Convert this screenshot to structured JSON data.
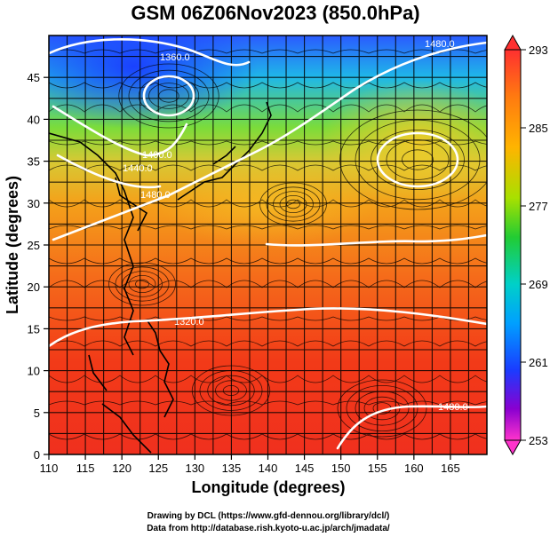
{
  "title": "GSM 06Z06Nov2023 (850.0hPa)",
  "x_axis": {
    "label": "Longitude (degrees)",
    "ticks": [
      "110",
      "115",
      "120",
      "125",
      "130",
      "135",
      "140",
      "145",
      "150",
      "155",
      "160",
      "165"
    ]
  },
  "y_axis": {
    "label": "Latitude (degrees)",
    "ticks": [
      "0",
      "5",
      "10",
      "15",
      "20",
      "25",
      "30",
      "35",
      "40",
      "45"
    ]
  },
  "colorbar": {
    "ticks": [
      "293",
      "285",
      "277",
      "269",
      "261",
      "253"
    ],
    "colors": [
      "#ff3030",
      "#ff8c00",
      "#ffd700",
      "#66dd00",
      "#00cc99",
      "#00aaff",
      "#1a3cff",
      "#9900cc",
      "#ff33cc"
    ]
  },
  "contour_labels": [
    "1360.0",
    "1480.0",
    "1400.0",
    "1440.0",
    "1480.0",
    "1320.0",
    "1480.0"
  ],
  "credits": {
    "line1": "Drawing by DCL (https://www.gfd-dennou.org/library/dcl/)",
    "line2": "Data from http://database.rish.kyoto-u.ac.jp/arch/jmadata/"
  },
  "chart_data": {
    "type": "heatmap",
    "title": "GSM 06Z06Nov2023 (850.0hPa)",
    "xlabel": "Longitude (degrees)",
    "ylabel": "Latitude (degrees)",
    "xlim": [
      110,
      170
    ],
    "ylim": [
      0,
      50
    ],
    "colorbar_range": [
      253,
      293
    ],
    "colorbar_ticks": [
      293,
      285,
      277,
      269,
      261,
      253
    ],
    "contour_levels_labeled": [
      1320.0,
      1360.0,
      1400.0,
      1440.0,
      1480.0
    ],
    "overlays": [
      "streamlines",
      "height-contours",
      "coastlines"
    ],
    "grid": true
  }
}
